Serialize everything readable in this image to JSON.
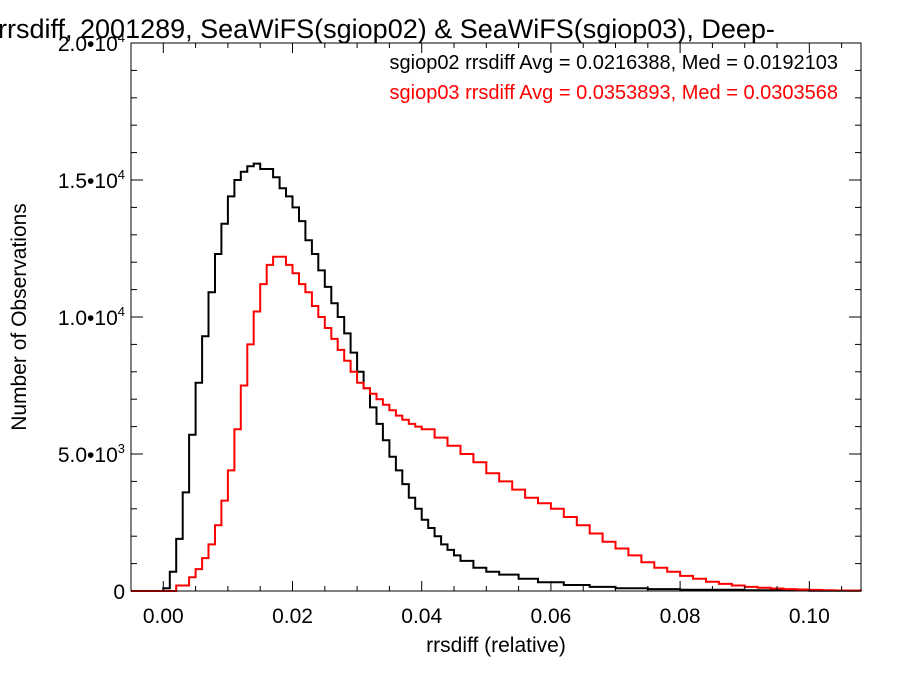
{
  "chart_data": {
    "type": "line",
    "step": true,
    "title": "rrsdiff, 2001289, SeaWiFS(sgiop02) & SeaWiFS(sgiop03), Deep-",
    "xlabel": "rrsdiff (relative)",
    "ylabel": "Number of Observations",
    "xlim": [
      -0.005,
      0.108
    ],
    "ylim": [
      0,
      20000
    ],
    "x_ticks": [
      {
        "value": 0.0,
        "label": "0.00"
      },
      {
        "value": 0.02,
        "label": "0.02"
      },
      {
        "value": 0.04,
        "label": "0.04"
      },
      {
        "value": 0.06,
        "label": "0.06"
      },
      {
        "value": 0.08,
        "label": "0.08"
      },
      {
        "value": 0.1,
        "label": "0.10"
      }
    ],
    "y_ticks": [
      {
        "value": 0,
        "label_main": "0",
        "label_exp": ""
      },
      {
        "value": 5000,
        "label_main": "5.0•10",
        "label_exp": "3"
      },
      {
        "value": 10000,
        "label_main": "1.0•10",
        "label_exp": "4"
      },
      {
        "value": 15000,
        "label_main": "1.5•10",
        "label_exp": "4"
      },
      {
        "value": 20000,
        "label_main": "2.0•10",
        "label_exp": "4"
      }
    ],
    "grid": false,
    "series": [
      {
        "name": "sgiop02",
        "color": "#000000",
        "stats_label": "sgiop02 rrsdiff Avg = 0.0216388, Med = 0.0192103",
        "x": [
          -0.005,
          0.0,
          0.001,
          0.002,
          0.003,
          0.004,
          0.005,
          0.006,
          0.007,
          0.008,
          0.009,
          0.01,
          0.011,
          0.012,
          0.013,
          0.014,
          0.015,
          0.016,
          0.017,
          0.018,
          0.019,
          0.02,
          0.021,
          0.022,
          0.023,
          0.024,
          0.025,
          0.026,
          0.027,
          0.028,
          0.029,
          0.03,
          0.031,
          0.032,
          0.033,
          0.034,
          0.035,
          0.036,
          0.037,
          0.038,
          0.039,
          0.04,
          0.041,
          0.042,
          0.043,
          0.044,
          0.045,
          0.046,
          0.048,
          0.05,
          0.052,
          0.055,
          0.058,
          0.062,
          0.066,
          0.07,
          0.075,
          0.08,
          0.09,
          0.1,
          0.108
        ],
        "y": [
          0,
          100,
          700,
          1900,
          3600,
          5700,
          7600,
          9300,
          10900,
          12300,
          13400,
          14400,
          15000,
          15300,
          15500,
          15600,
          15400,
          15400,
          15100,
          14700,
          14400,
          14000,
          13500,
          12800,
          12300,
          11700,
          11100,
          10500,
          10000,
          9400,
          8700,
          8000,
          7400,
          6700,
          6100,
          5500,
          4900,
          4400,
          3900,
          3400,
          3000,
          2600,
          2300,
          2000,
          1700,
          1500,
          1300,
          1100,
          850,
          700,
          600,
          450,
          320,
          220,
          150,
          100,
          70,
          45,
          25,
          10,
          5
        ]
      },
      {
        "name": "sgiop03",
        "color": "#ff0000",
        "stats_label": "sgiop03 rrsdiff Avg = 0.0353893, Med = 0.0303568",
        "x": [
          -0.005,
          0.0,
          0.002,
          0.004,
          0.005,
          0.006,
          0.007,
          0.008,
          0.009,
          0.01,
          0.011,
          0.012,
          0.013,
          0.014,
          0.015,
          0.016,
          0.017,
          0.018,
          0.019,
          0.02,
          0.021,
          0.022,
          0.023,
          0.024,
          0.025,
          0.026,
          0.027,
          0.028,
          0.029,
          0.03,
          0.031,
          0.032,
          0.033,
          0.034,
          0.035,
          0.036,
          0.037,
          0.038,
          0.039,
          0.04,
          0.042,
          0.044,
          0.046,
          0.048,
          0.05,
          0.052,
          0.054,
          0.056,
          0.058,
          0.06,
          0.062,
          0.064,
          0.066,
          0.068,
          0.07,
          0.072,
          0.074,
          0.076,
          0.078,
          0.08,
          0.082,
          0.084,
          0.086,
          0.088,
          0.09,
          0.092,
          0.094,
          0.096,
          0.098,
          0.1,
          0.102,
          0.104,
          0.106,
          0.108
        ],
        "y": [
          0,
          0,
          200,
          500,
          800,
          1200,
          1700,
          2400,
          3300,
          4400,
          5900,
          7500,
          9000,
          10200,
          11200,
          11900,
          12200,
          12200,
          11900,
          11600,
          11200,
          10900,
          10400,
          10000,
          9600,
          9200,
          8800,
          8400,
          8000,
          7600,
          7400,
          7200,
          7000,
          6800,
          6600,
          6400,
          6250,
          6100,
          6000,
          5900,
          5600,
          5300,
          5000,
          4700,
          4300,
          4000,
          3700,
          3400,
          3200,
          3000,
          2700,
          2400,
          2100,
          1800,
          1550,
          1300,
          1050,
          850,
          700,
          550,
          450,
          340,
          260,
          200,
          150,
          120,
          90,
          70,
          55,
          40,
          30,
          20,
          15,
          10
        ]
      }
    ]
  }
}
